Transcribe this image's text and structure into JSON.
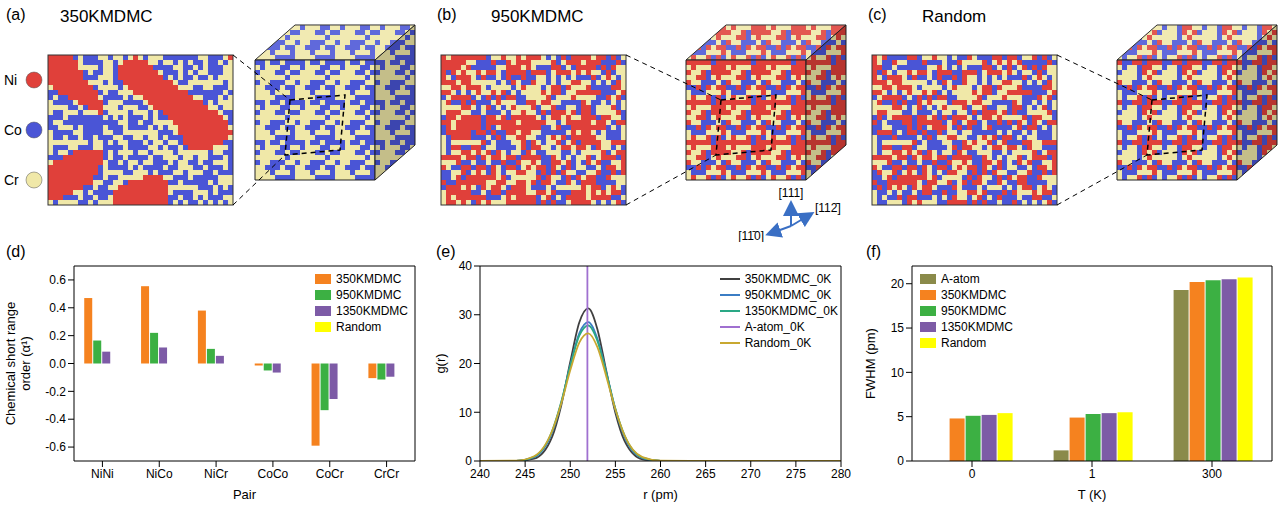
{
  "images": {
    "elements": [
      {
        "name": "Ni",
        "color": "#e0403a"
      },
      {
        "name": "Co",
        "color": "#4a55d6"
      },
      {
        "name": "Cr",
        "color": "#f0e8a8"
      }
    ],
    "panels": [
      {
        "label": "(a)",
        "title": "350KMDMC"
      },
      {
        "label": "(b)",
        "title": "950KMDMC"
      },
      {
        "label": "(c)",
        "title": "Random"
      }
    ],
    "directions": [
      "[11̄0]",
      "[111]",
      "[112̄]"
    ]
  },
  "chart_data": [
    {
      "type": "bar",
      "panel": "(d)",
      "x_label": "Pair",
      "y_label": "Chemical short range order (α¹)",
      "categories": [
        "NiNi",
        "NiCo",
        "NiCr",
        "CoCo",
        "CoCr",
        "CrCr"
      ],
      "series": [
        {
          "name": "350KMDMC",
          "color": "#f5821f",
          "values": [
            0.47,
            0.555,
            0.38,
            -0.015,
            -0.59,
            -0.105
          ]
        },
        {
          "name": "950KMDMC",
          "color": "#3cb043",
          "values": [
            0.165,
            0.22,
            0.105,
            -0.05,
            -0.335,
            -0.115
          ]
        },
        {
          "name": "1350KMDMC",
          "color": "#7d5ba6",
          "values": [
            0.085,
            0.115,
            0.055,
            -0.065,
            -0.255,
            -0.095
          ]
        },
        {
          "name": "Random",
          "color": "#ffff00",
          "values": [
            0,
            0,
            0,
            0,
            0,
            0
          ]
        }
      ],
      "ylim": [
        -0.7,
        0.7
      ],
      "yticks": [
        -0.6,
        -0.4,
        -0.2,
        {
          "value": 0,
          "label": "0.0"
        },
        0.2,
        0.4,
        0.6
      ],
      "legend": "upper right"
    },
    {
      "type": "line",
      "panel": "(e)",
      "x_label": "r (pm)",
      "y_label": "g(r)",
      "x": [
        240,
        244,
        246,
        248,
        249,
        250,
        251,
        252,
        253,
        254,
        255,
        256,
        258,
        260,
        265,
        270,
        280
      ],
      "series": [
        {
          "name": "350KMDMC_0K",
          "color": "#404040",
          "values": [
            0,
            0.02,
            0.48,
            5.0,
            11.4,
            20.3,
            28.4,
            31.3,
            27.1,
            18.4,
            9.9,
            4.2,
            0.36,
            0.01,
            0,
            0,
            0
          ]
        },
        {
          "name": "950KMDMC_0K",
          "color": "#3b7dc4",
          "values": [
            0,
            0.03,
            0.78,
            5.9,
            11.9,
            19.6,
            26.2,
            28.5,
            25.1,
            18.1,
            10.6,
            5.0,
            0.61,
            0.03,
            0,
            0,
            0
          ]
        },
        {
          "name": "1350KMDMC_0K",
          "color": "#2aa885",
          "values": [
            0,
            0.04,
            0.88,
            6.2,
            12.1,
            19.5,
            25.7,
            27.8,
            24.7,
            18.0,
            10.7,
            5.3,
            0.7,
            0.04,
            0,
            0,
            0
          ]
        },
        {
          "name": "A-atom_0K",
          "color": "#a070d0",
          "x": [
            251.9,
            251.9
          ],
          "values": [
            0,
            40
          ]
        },
        {
          "name": "Random_0K",
          "color": "#c8a830",
          "values": [
            0,
            0.07,
            0.98,
            6.2,
            11.8,
            18.6,
            24.3,
            26.2,
            23.4,
            17.3,
            10.6,
            5.3,
            0.78,
            0.05,
            0,
            0,
            0
          ]
        }
      ],
      "xlim": [
        240,
        280
      ],
      "xticks": [
        240,
        245,
        250,
        255,
        260,
        265,
        270,
        275,
        280
      ],
      "ylim": [
        0,
        40
      ],
      "yticks": [
        0,
        10,
        20,
        30,
        40
      ],
      "legend": "upper right"
    },
    {
      "type": "bar",
      "panel": "(f)",
      "x_label": "T (K)",
      "y_label": "FWHM (pm)",
      "categories": [
        "0",
        "1",
        "300"
      ],
      "series": [
        {
          "name": "A-atom",
          "color": "#8a8a4a",
          "values": [
            null,
            1.2,
            19.3
          ]
        },
        {
          "name": "350KMDMC",
          "color": "#f5821f",
          "values": [
            4.8,
            4.9,
            20.2
          ]
        },
        {
          "name": "950KMDMC",
          "color": "#3cb043",
          "values": [
            5.1,
            5.3,
            20.4
          ]
        },
        {
          "name": "1350KMDMC",
          "color": "#7d5ba6",
          "values": [
            5.2,
            5.4,
            20.5
          ]
        },
        {
          "name": "Random",
          "color": "#ffff00",
          "values": [
            5.4,
            5.5,
            20.7
          ]
        }
      ],
      "ylim": [
        0,
        22
      ],
      "yticks": [
        0,
        5,
        10,
        15,
        20
      ],
      "legend": "upper left"
    }
  ]
}
